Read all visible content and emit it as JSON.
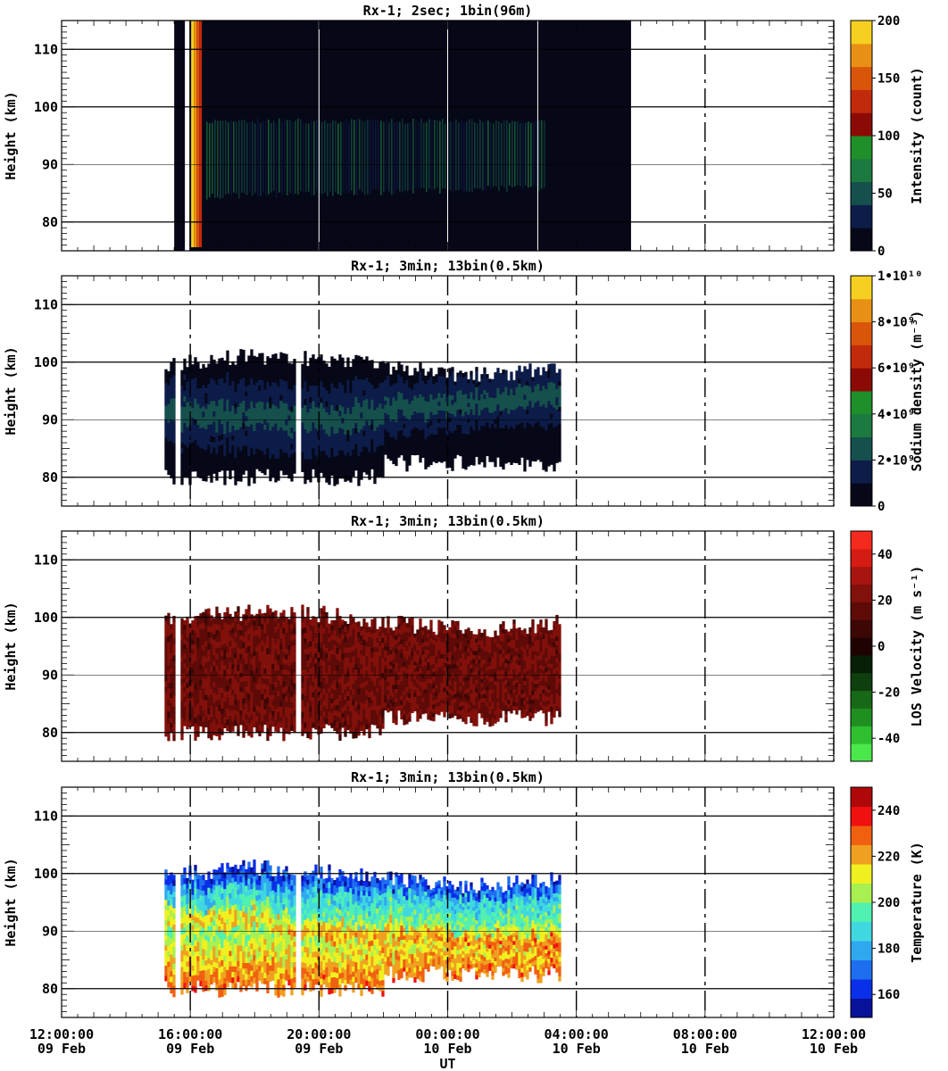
{
  "figure": {
    "x_axis_label": "UT",
    "x_ticks": [
      {
        "time": "12:00:00",
        "date": "09 Feb",
        "hours": 12
      },
      {
        "time": "16:00:00",
        "date": "09 Feb",
        "hours": 16
      },
      {
        "time": "20:00:00",
        "date": "09 Feb",
        "hours": 20
      },
      {
        "time": "00:00:00",
        "date": "10 Feb",
        "hours": 24
      },
      {
        "time": "04:00:00",
        "date": "10 Feb",
        "hours": 28
      },
      {
        "time": "08:00:00",
        "date": "10 Feb",
        "hours": 32
      },
      {
        "time": "12:00:00",
        "date": "10 Feb",
        "hours": 36
      }
    ]
  },
  "chart_data": [
    {
      "type": "heatmap",
      "title": "Rx-1;  2sec; 1bin(96m)",
      "ylabel": "Height (km)",
      "yticks": [
        80,
        90,
        100,
        110
      ],
      "ylim": [
        75,
        115
      ],
      "xlim_hours": [
        12,
        36
      ],
      "colorbar_label": "Intensity (count)",
      "colorbar_ticks": [
        "0",
        "50",
        "100",
        "150",
        "200"
      ],
      "colorbar_range": [
        0,
        200
      ],
      "colors": [
        "#060818",
        "#0d1c48",
        "#15504c",
        "#1c7a40",
        "#1f8f2a",
        "#8c0a05",
        "#c22a0c",
        "#d9550a",
        "#e89015",
        "#f5d020"
      ],
      "data_extent_hours": [
        15.5,
        29.7
      ],
      "layer_heights_km": {
        "top": 98,
        "bottom": 85
      },
      "dashed_verticals_hours": [
        32,
        36
      ]
    },
    {
      "type": "heatmap",
      "title": "Rx-1; 3min; 13bin(0.5km)",
      "ylabel": "Height (km)",
      "yticks": [
        80,
        90,
        100,
        110
      ],
      "ylim": [
        75,
        115
      ],
      "xlim_hours": [
        12,
        36
      ],
      "colorbar_label": "Sodium density (m⁻³)",
      "colorbar_ticks": [
        "0",
        "2•10⁹",
        "4•10⁹",
        "6•10⁹",
        "8•10⁹",
        "1•10¹⁰"
      ],
      "colorbar_range": [
        0,
        10000000000
      ],
      "colors": [
        "#060818",
        "#0d1c48",
        "#15504c",
        "#1c7a40",
        "#1f8f2a",
        "#8c0a05",
        "#c22a0c",
        "#d9550a",
        "#e89015",
        "#f5d020"
      ],
      "data_extent_hours": [
        15.2,
        27.5
      ],
      "layer_heights_km": {
        "top": 101,
        "peak": 92,
        "bottom": 80
      },
      "dashed_verticals_hours": [
        16,
        20,
        24,
        28,
        32,
        36
      ]
    },
    {
      "type": "heatmap",
      "title": "Rx-1; 3min; 13bin(0.5km)",
      "ylabel": "Height (km)",
      "yticks": [
        80,
        90,
        100,
        110
      ],
      "ylim": [
        75,
        115
      ],
      "xlim_hours": [
        12,
        36
      ],
      "colorbar_label": "LOS Velocity (m s⁻¹)",
      "colorbar_ticks": [
        "-40",
        "-20",
        "0",
        "20",
        "40"
      ],
      "colorbar_range": [
        -50,
        50
      ],
      "colors": [
        "#4be84b",
        "#2fbf2f",
        "#1f8f1f",
        "#176917",
        "#0f3e0f",
        "#061f06",
        "#1f0303",
        "#3d0705",
        "#5e0b08",
        "#82100b",
        "#a81510",
        "#d41c14",
        "#f52a1f"
      ],
      "data_extent_hours": [
        15.2,
        27.5
      ],
      "layer_heights_km": {
        "top": 101,
        "bottom": 80
      },
      "dashed_verticals_hours": [
        16,
        20,
        24,
        28,
        32,
        36
      ]
    },
    {
      "type": "heatmap",
      "title": "Rx-1; 3min; 13bin(0.5km)",
      "ylabel": "Height (km)",
      "yticks": [
        80,
        90,
        100,
        110
      ],
      "ylim": [
        75,
        115
      ],
      "xlim_hours": [
        12,
        36
      ],
      "colorbar_label": "Temperature (K)",
      "colorbar_ticks": [
        "160",
        "180",
        "200",
        "220",
        "240"
      ],
      "colorbar_range": [
        150,
        250
      ],
      "colors": [
        "#08119a",
        "#0a2fe8",
        "#1e6ef0",
        "#2fa8f0",
        "#40d8e0",
        "#50f0b0",
        "#a8f050",
        "#f0f020",
        "#f0a020",
        "#f06010",
        "#f01010",
        "#b00808"
      ],
      "data_extent_hours": [
        15.2,
        27.5
      ],
      "layer_heights_km": {
        "top": 101,
        "bottom": 80
      },
      "dashed_verticals_hours": [
        16,
        20,
        24,
        28,
        32,
        36
      ]
    }
  ]
}
